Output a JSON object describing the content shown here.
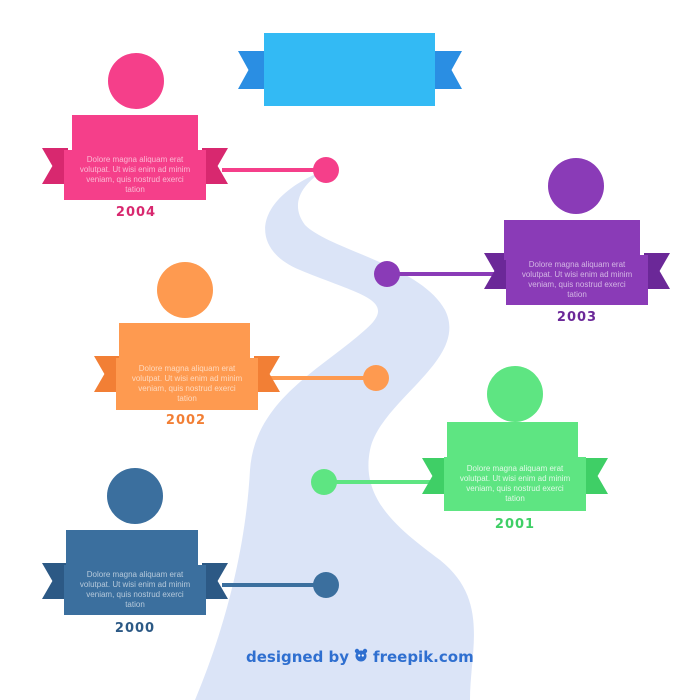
{
  "title": {
    "text": ""
  },
  "events": [
    {
      "year": "2004",
      "color": "#f53f8a",
      "dark": "#d8286f",
      "text": "Dolore magna aliquam erat volutpat. Ut wisi enim ad minim veniam, quis nostrud exerci tation"
    },
    {
      "year": "2003",
      "color": "#8a3bb7",
      "dark": "#6b2898",
      "text": "Dolore magna aliquam erat volutpat. Ut wisi enim ad minim veniam, quis nostrud exerci tation"
    },
    {
      "year": "2002",
      "color": "#fe9a50",
      "dark": "#f27f35",
      "text": "Dolore magna aliquam erat volutpat. Ut wisi enim ad minim veniam, quis nostrud exerci tation"
    },
    {
      "year": "2001",
      "color": "#5ee582",
      "dark": "#3fcf66",
      "text": "Dolore magna aliquam erat volutpat. Ut wisi enim ad minim veniam, quis nostrud exerci tation"
    },
    {
      "year": "2000",
      "color": "#3b6f9e",
      "dark": "#2c5985",
      "text": "Dolore magna aliquam erat volutpat. Ut wisi enim ad minim veniam, quis nostrud exerci tation"
    }
  ],
  "credit": {
    "prefix": "designed by",
    "brand": "freepik.com",
    "logo_icon": "freepik-logo-icon"
  },
  "road_color": "#dbe4f7"
}
